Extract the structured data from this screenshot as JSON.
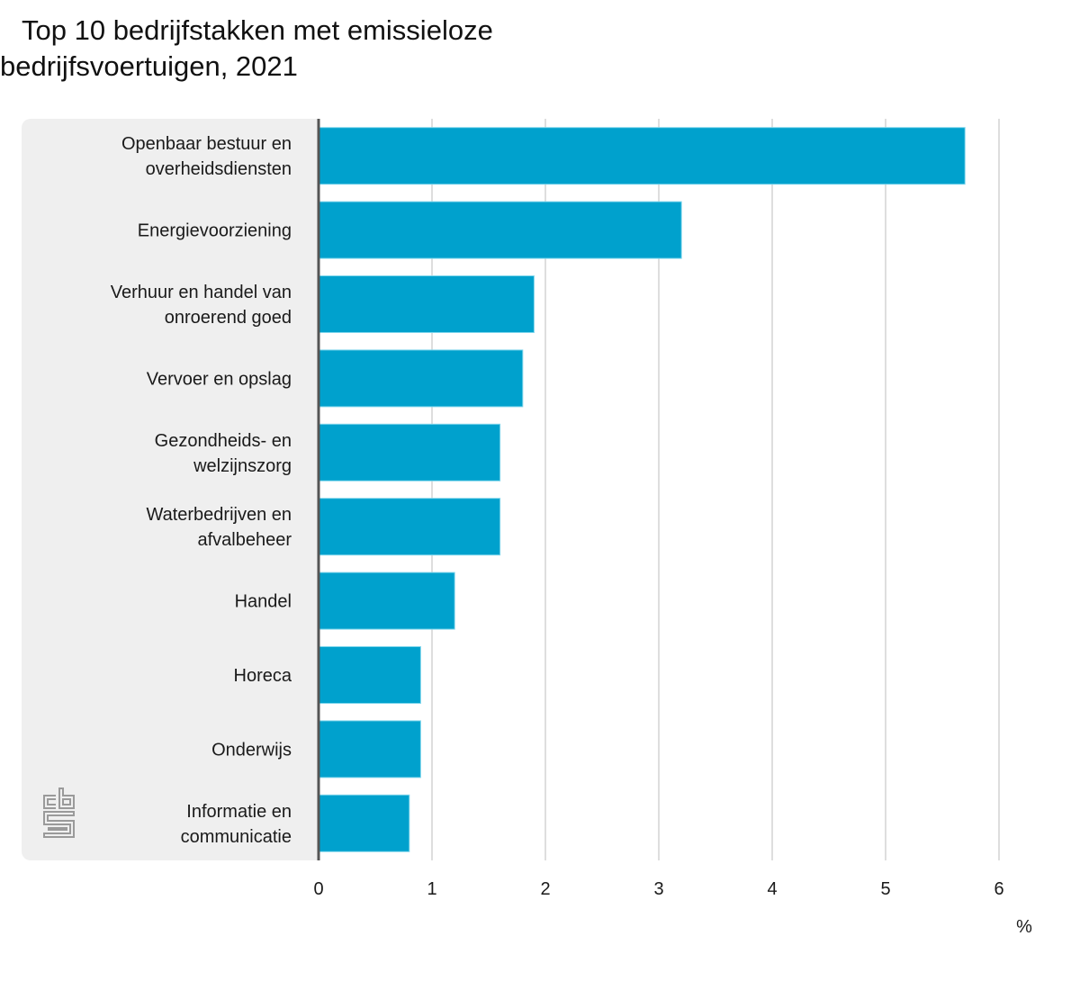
{
  "chart_data": {
    "type": "bar",
    "orientation": "horizontal",
    "title": "Top 10 bedrijfstakken met emissieloze bedrijfsvoertuigen, 2021",
    "title_lines": [
      "Top 10 bedrijfstakken met emissieloze",
      "bedrijfsvoertuigen, 2021"
    ],
    "categories": [
      [
        "Openbaar bestuur en",
        "overheidsdiensten"
      ],
      [
        "Energievoorziening"
      ],
      [
        "Verhuur en handel van",
        "onroerend goed"
      ],
      [
        "Vervoer en opslag"
      ],
      [
        "Gezondheids- en",
        "welzijnszorg"
      ],
      [
        "Waterbedrijven en",
        "afvalbeheer"
      ],
      [
        "Handel"
      ],
      [
        "Horeca"
      ],
      [
        "Onderwijs"
      ],
      [
        "Informatie en",
        "communicatie"
      ]
    ],
    "values": [
      5.7,
      3.2,
      1.9,
      1.8,
      1.6,
      1.6,
      1.2,
      0.9,
      0.9,
      0.8
    ],
    "xlabel": "%",
    "ylabel": "",
    "xlim": [
      0,
      6
    ],
    "xticks": [
      "0",
      "1",
      "2",
      "3",
      "4",
      "5",
      "6"
    ],
    "grid": true,
    "bar_color": "#00a1cd",
    "legend": "none"
  },
  "branding": {
    "logo": "cbs-logo-icon"
  }
}
